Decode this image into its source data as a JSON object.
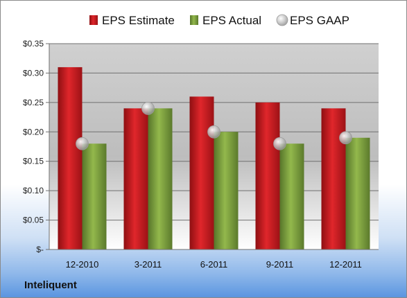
{
  "company": "Inteliquent",
  "colors": {
    "estimate": "#d01e24",
    "actual": "#7fa23e",
    "gaap": "#b8b8b8"
  },
  "chart_data": {
    "type": "bar",
    "categories": [
      "12-2010",
      "3-2011",
      "6-2011",
      "9-2011",
      "12-2011"
    ],
    "series": [
      {
        "name": "EPS Estimate",
        "values": [
          0.31,
          0.24,
          0.26,
          0.25,
          0.24
        ]
      },
      {
        "name": "EPS Actual",
        "values": [
          0.18,
          0.24,
          0.2,
          0.18,
          0.19
        ]
      },
      {
        "name": "EPS GAAP",
        "values": [
          0.18,
          0.24,
          0.2,
          0.18,
          0.19
        ],
        "marker": "circle"
      }
    ],
    "ylim": [
      0,
      0.35
    ],
    "yticks": [
      0,
      0.05,
      0.1,
      0.15,
      0.2,
      0.25,
      0.3,
      0.35
    ],
    "ytick_labels": [
      "$-",
      "$0.05",
      "$0.10",
      "$0.15",
      "$0.20",
      "$0.25",
      "$0.30",
      "$0.35"
    ],
    "grid": true,
    "legend": "top"
  }
}
